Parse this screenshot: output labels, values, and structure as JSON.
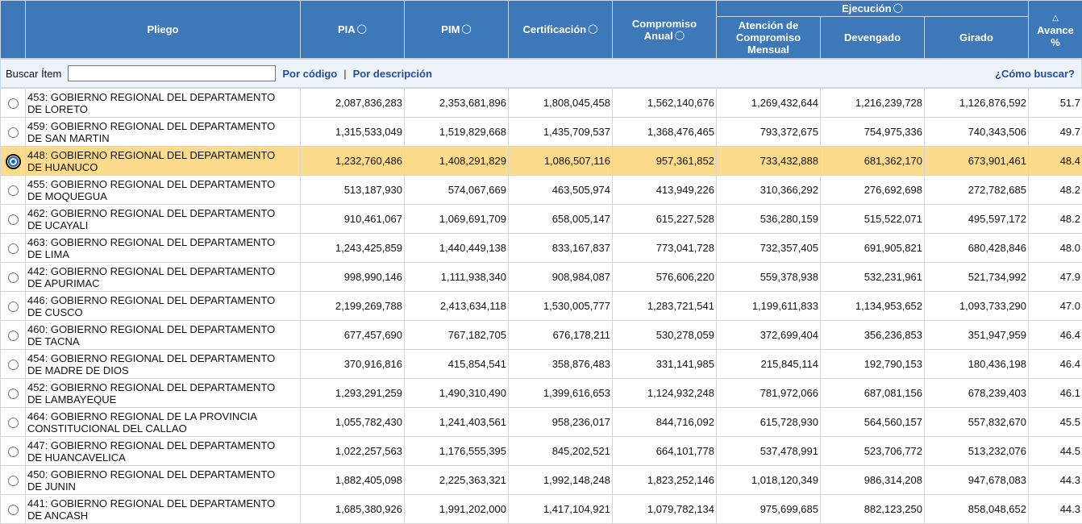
{
  "header": {
    "pliego": "Pliego",
    "pia": "PIA",
    "pim": "PIM",
    "certificacion": "Certificación",
    "compromiso_line1": "Compromiso",
    "compromiso_line2": "Anual",
    "ejecucion": "Ejecución",
    "atencion_line1": "Atención de",
    "atencion_line2": "Compromiso",
    "atencion_line3": "Mensual",
    "devengado": "Devengado",
    "girado": "Girado",
    "avance_line1": "Avance",
    "avance_line2": "%",
    "info_icon": "info-bubble-icon",
    "sort_icon": "triangle-sort-icon"
  },
  "search": {
    "label": "Buscar Ítem",
    "value": "",
    "by_code": "Por código",
    "separator": "|",
    "by_description": "Por descripción",
    "help": "¿Cómo buscar?"
  },
  "selected_row": 2,
  "rows": [
    {
      "name_l1": "453: GOBIERNO REGIONAL DEL DEPARTAMENTO",
      "name_l2": "DE LORETO",
      "pia": "2,087,836,283",
      "pim": "2,353,681,896",
      "cert": "1,808,045,458",
      "comp": "1,562,140,676",
      "aten": "1,269,432,644",
      "dev": "1,216,239,728",
      "gir": "1,126,876,592",
      "av": "51.7"
    },
    {
      "name_l1": "459: GOBIERNO REGIONAL DEL DEPARTAMENTO",
      "name_l2": "DE SAN MARTIN",
      "pia": "1,315,533,049",
      "pim": "1,519,829,668",
      "cert": "1,435,709,537",
      "comp": "1,368,476,465",
      "aten": "793,372,675",
      "dev": "754,975,336",
      "gir": "740,343,506",
      "av": "49.7"
    },
    {
      "name_l1": "448: GOBIERNO REGIONAL DEL DEPARTAMENTO",
      "name_l2": "DE HUANUCO",
      "pia": "1,232,760,486",
      "pim": "1,408,291,829",
      "cert": "1,086,507,116",
      "comp": "957,361,852",
      "aten": "733,432,888",
      "dev": "681,362,170",
      "gir": "673,901,461",
      "av": "48.4"
    },
    {
      "name_l1": "455: GOBIERNO REGIONAL DEL DEPARTAMENTO",
      "name_l2": "DE MOQUEGUA",
      "pia": "513,187,930",
      "pim": "574,067,669",
      "cert": "463,505,974",
      "comp": "413,949,226",
      "aten": "310,366,292",
      "dev": "276,692,698",
      "gir": "272,782,685",
      "av": "48.2"
    },
    {
      "name_l1": "462: GOBIERNO REGIONAL DEL DEPARTAMENTO",
      "name_l2": "DE UCAYALI",
      "pia": "910,461,067",
      "pim": "1,069,691,709",
      "cert": "658,005,147",
      "comp": "615,227,528",
      "aten": "536,280,159",
      "dev": "515,522,071",
      "gir": "495,597,172",
      "av": "48.2"
    },
    {
      "name_l1": "463: GOBIERNO REGIONAL DEL DEPARTAMENTO",
      "name_l2": "DE LIMA",
      "pia": "1,243,425,859",
      "pim": "1,440,449,138",
      "cert": "833,167,837",
      "comp": "773,041,728",
      "aten": "732,357,405",
      "dev": "691,905,821",
      "gir": "680,428,846",
      "av": "48.0"
    },
    {
      "name_l1": "442: GOBIERNO REGIONAL DEL DEPARTAMENTO",
      "name_l2": "DE APURIMAC",
      "pia": "998,990,146",
      "pim": "1,111,938,340",
      "cert": "908,984,087",
      "comp": "576,606,220",
      "aten": "559,378,938",
      "dev": "532,231,961",
      "gir": "521,734,992",
      "av": "47.9"
    },
    {
      "name_l1": "446: GOBIERNO REGIONAL DEL DEPARTAMENTO",
      "name_l2": "DE CUSCO",
      "pia": "2,199,269,788",
      "pim": "2,413,634,118",
      "cert": "1,530,005,777",
      "comp": "1,283,721,541",
      "aten": "1,199,611,833",
      "dev": "1,134,953,652",
      "gir": "1,093,733,290",
      "av": "47.0"
    },
    {
      "name_l1": "460: GOBIERNO REGIONAL DEL DEPARTAMENTO",
      "name_l2": "DE TACNA",
      "pia": "677,457,690",
      "pim": "767,182,705",
      "cert": "676,178,211",
      "comp": "530,278,059",
      "aten": "372,699,404",
      "dev": "356,236,853",
      "gir": "351,947,959",
      "av": "46.4"
    },
    {
      "name_l1": "454: GOBIERNO REGIONAL DEL DEPARTAMENTO",
      "name_l2": "DE MADRE DE DIOS",
      "pia": "370,916,816",
      "pim": "415,854,541",
      "cert": "358,876,483",
      "comp": "331,141,985",
      "aten": "215,845,114",
      "dev": "192,790,153",
      "gir": "180,436,198",
      "av": "46.4"
    },
    {
      "name_l1": "452: GOBIERNO REGIONAL DEL DEPARTAMENTO",
      "name_l2": "DE LAMBAYEQUE",
      "pia": "1,293,291,259",
      "pim": "1,490,310,490",
      "cert": "1,399,616,653",
      "comp": "1,124,932,248",
      "aten": "781,972,066",
      "dev": "687,081,156",
      "gir": "678,239,403",
      "av": "46.1"
    },
    {
      "name_l1": "464: GOBIERNO REGIONAL DE LA PROVINCIA",
      "name_l2": "CONSTITUCIONAL DEL CALLAO",
      "pia": "1,055,782,430",
      "pim": "1,241,403,561",
      "cert": "958,236,017",
      "comp": "844,716,092",
      "aten": "615,728,930",
      "dev": "564,560,157",
      "gir": "557,832,670",
      "av": "45.5"
    },
    {
      "name_l1": "447: GOBIERNO REGIONAL DEL DEPARTAMENTO",
      "name_l2": "DE HUANCAVELICA",
      "pia": "1,022,257,563",
      "pim": "1,176,555,395",
      "cert": "845,202,521",
      "comp": "664,101,778",
      "aten": "537,478,991",
      "dev": "523,706,772",
      "gir": "513,232,076",
      "av": "44.5"
    },
    {
      "name_l1": "450: GOBIERNO REGIONAL DEL DEPARTAMENTO",
      "name_l2": "DE JUNIN",
      "pia": "1,882,405,098",
      "pim": "2,225,363,321",
      "cert": "1,992,148,248",
      "comp": "1,823,252,146",
      "aten": "1,018,120,349",
      "dev": "986,314,208",
      "gir": "947,678,083",
      "av": "44.3"
    },
    {
      "name_l1": "441: GOBIERNO REGIONAL DEL DEPARTAMENTO",
      "name_l2": "DE ANCASH",
      "pia": "1,685,380,926",
      "pim": "1,991,202,000",
      "cert": "1,417,104,921",
      "comp": "1,079,782,134",
      "aten": "975,699,685",
      "dev": "882,123,250",
      "gir": "858,048,652",
      "av": "44.3"
    }
  ]
}
